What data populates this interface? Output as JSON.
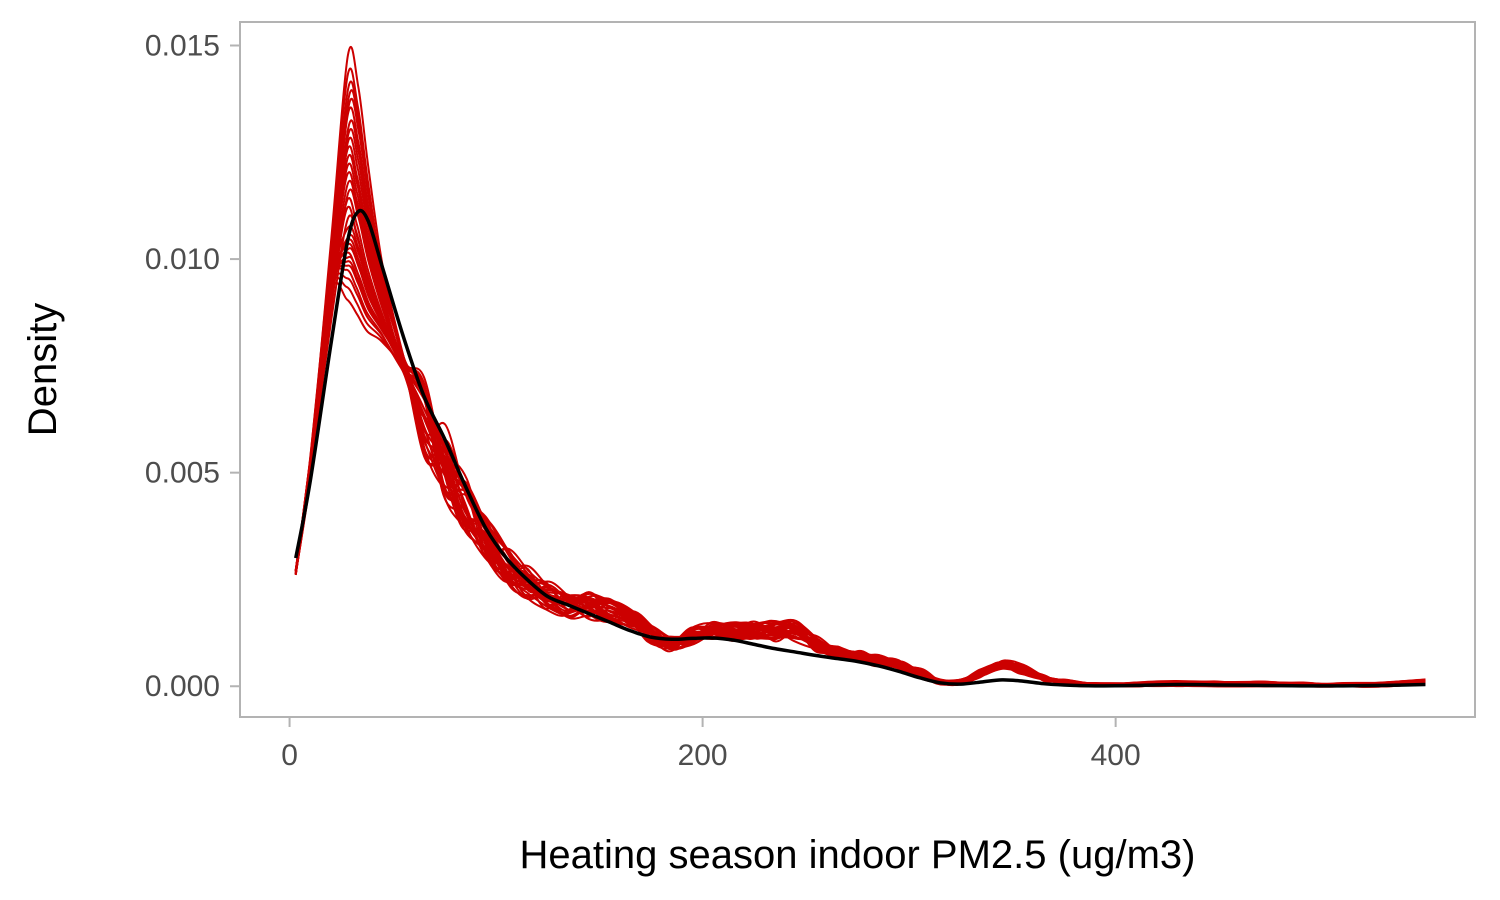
{
  "chart_data": {
    "type": "line",
    "title": "",
    "xlabel": "Heating season indoor PM2.5 (ug/m3)",
    "ylabel": "Density",
    "xlim": [
      -24,
      574
    ],
    "ylim": [
      -0.00072,
      0.01555
    ],
    "x_ticks": [
      0,
      200,
      400
    ],
    "y_ticks": [
      0.0,
      0.005,
      0.01,
      0.015
    ],
    "y_tick_labels": [
      "0.000",
      "0.005",
      "0.010",
      "0.015"
    ],
    "grid": false,
    "legend": "none",
    "colors": {
      "replicates": "#cc0000",
      "observed": "#000000",
      "panel_border": "#b3b3b3",
      "tick_text": "#4d4d4d"
    },
    "observed": {
      "x": [
        3,
        10,
        20,
        28,
        33,
        38,
        45,
        55,
        65,
        75,
        85,
        95,
        105,
        115,
        125,
        135,
        145,
        155,
        165,
        175,
        185,
        195,
        205,
        215,
        225,
        235,
        245,
        255,
        265,
        275,
        285,
        295,
        305,
        315,
        325,
        335,
        345,
        355,
        365,
        375,
        390,
        410,
        430,
        450,
        470,
        490,
        510,
        530,
        550
      ],
      "y": [
        0.003,
        0.0048,
        0.008,
        0.0104,
        0.0111,
        0.0109,
        0.0098,
        0.0082,
        0.0068,
        0.0058,
        0.0047,
        0.0037,
        0.003,
        0.0025,
        0.0021,
        0.0019,
        0.0017,
        0.0015,
        0.0013,
        0.00115,
        0.0011,
        0.00112,
        0.00113,
        0.00108,
        0.00098,
        0.00088,
        0.0008,
        0.00072,
        0.00065,
        0.00058,
        0.00048,
        0.00035,
        0.0002,
        8e-05,
        5e-05,
        0.0001,
        0.00015,
        0.00012,
        6e-05,
        3e-05,
        1e-05,
        2e-05,
        4e-05,
        3e-05,
        2e-05,
        1e-05,
        1e-05,
        2e-05,
        4e-05
      ]
    },
    "replicate_x": [
      3,
      10,
      20,
      28,
      33,
      38,
      45,
      55,
      65,
      75,
      85,
      95,
      105,
      115,
      125,
      135,
      145,
      155,
      165,
      175,
      185,
      195,
      205,
      215,
      225,
      235,
      245,
      255,
      265,
      275,
      285,
      295,
      305,
      315,
      325,
      335,
      345,
      355,
      365,
      375,
      390,
      410,
      430,
      450,
      470,
      490,
      510,
      530,
      550
    ],
    "replicate_base_y": [
      0.0027,
      0.0052,
      0.0095,
      0.0128,
      0.0122,
      0.0108,
      0.0092,
      0.0076,
      0.0063,
      0.0053,
      0.0043,
      0.0035,
      0.0028,
      0.0024,
      0.0021,
      0.0019,
      0.0019,
      0.0018,
      0.0016,
      0.0012,
      0.001,
      0.0012,
      0.0013,
      0.0013,
      0.0013,
      0.0013,
      0.0013,
      0.001,
      0.0008,
      0.0007,
      0.0006,
      0.0005,
      0.0003,
      0.0001,
      0.0001,
      0.0003,
      0.0005,
      0.0004,
      0.0002,
      0.0001,
      2e-05,
      3e-05,
      6e-05,
      5e-05,
      6e-05,
      3e-05,
      2e-05,
      3e-05,
      0.0001
    ],
    "replicate_peak_values": [
      0.0148,
      0.0143,
      0.014,
      0.0138,
      0.0136,
      0.0134,
      0.0131,
      0.0129,
      0.0127,
      0.0125,
      0.0123,
      0.0121,
      0.0119,
      0.0117,
      0.0115,
      0.0113,
      0.0111,
      0.0109,
      0.0107,
      0.0105,
      0.0104,
      0.0103,
      0.0102,
      0.0101,
      0.01,
      0.0099,
      0.0098,
      0.0097,
      0.0095,
      0.0093,
      0.009
    ]
  }
}
